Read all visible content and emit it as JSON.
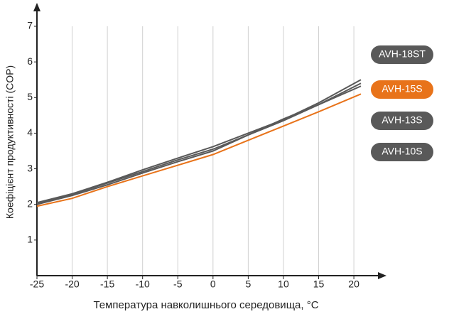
{
  "chart_data": {
    "type": "line",
    "x_label": "Температура навколишнього середовища, °C",
    "y_label": "Коефіцієнт продуктивності (COP)",
    "x": [
      -25,
      -20,
      -15,
      -10,
      -5,
      0,
      5,
      10,
      15,
      21
    ],
    "series": [
      {
        "name": "AVH-18ST",
        "color": "#595959",
        "values": [
          2.05,
          2.3,
          2.62,
          2.97,
          3.3,
          3.62,
          4.0,
          4.38,
          4.85,
          5.5
        ]
      },
      {
        "name": "AVH-15S",
        "color": "#e8731a",
        "values": [
          1.95,
          2.17,
          2.5,
          2.8,
          3.1,
          3.4,
          3.8,
          4.2,
          4.6,
          5.1
        ]
      },
      {
        "name": "AVH-13S",
        "color": "#595959",
        "values": [
          2.03,
          2.28,
          2.6,
          2.92,
          3.25,
          3.55,
          3.95,
          4.35,
          4.8,
          5.4
        ]
      },
      {
        "name": "AVH-10S",
        "color": "#595959",
        "values": [
          2.0,
          2.25,
          2.55,
          2.88,
          3.2,
          3.5,
          3.95,
          4.4,
          4.8,
          5.32
        ]
      }
    ],
    "xlim": [
      -25,
      21
    ],
    "xticks": [
      -25,
      -20,
      -15,
      -10,
      -5,
      0,
      5,
      10,
      15,
      20
    ],
    "ylim": [
      0,
      7
    ],
    "yticks": [
      1,
      2,
      3,
      4,
      5,
      6,
      7
    ],
    "grid": true,
    "legend": "right"
  }
}
